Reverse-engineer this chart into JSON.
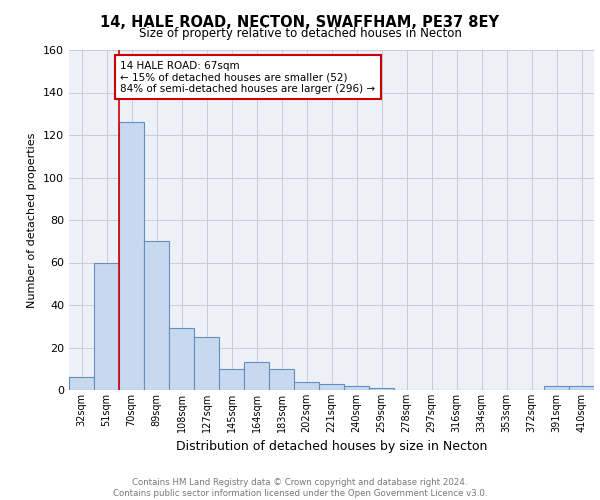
{
  "title": "14, HALE ROAD, NECTON, SWAFFHAM, PE37 8EY",
  "subtitle": "Size of property relative to detached houses in Necton",
  "xlabel": "Distribution of detached houses by size in Necton",
  "ylabel": "Number of detached properties",
  "categories": [
    "32sqm",
    "51sqm",
    "70sqm",
    "89sqm",
    "108sqm",
    "127sqm",
    "145sqm",
    "164sqm",
    "183sqm",
    "202sqm",
    "221sqm",
    "240sqm",
    "259sqm",
    "278sqm",
    "297sqm",
    "316sqm",
    "334sqm",
    "353sqm",
    "372sqm",
    "391sqm",
    "410sqm"
  ],
  "values": [
    6,
    60,
    126,
    70,
    29,
    25,
    10,
    13,
    10,
    4,
    3,
    2,
    1,
    0,
    0,
    0,
    0,
    0,
    0,
    2,
    2
  ],
  "bar_color": "#c8d8ee",
  "bar_edge_color": "#6090c0",
  "vline_color": "#cc0000",
  "annotation_text": "14 HALE ROAD: 67sqm\n← 15% of detached houses are smaller (52)\n84% of semi-detached houses are larger (296) →",
  "annotation_box_color": "#ffffff",
  "annotation_box_edge_color": "#cc0000",
  "ylim": [
    0,
    160
  ],
  "yticks": [
    0,
    20,
    40,
    60,
    80,
    100,
    120,
    140,
    160
  ],
  "footer_text": "Contains HM Land Registry data © Crown copyright and database right 2024.\nContains public sector information licensed under the Open Government Licence v3.0.",
  "grid_color": "#c8ccd8",
  "background_color": "#eef0f8"
}
